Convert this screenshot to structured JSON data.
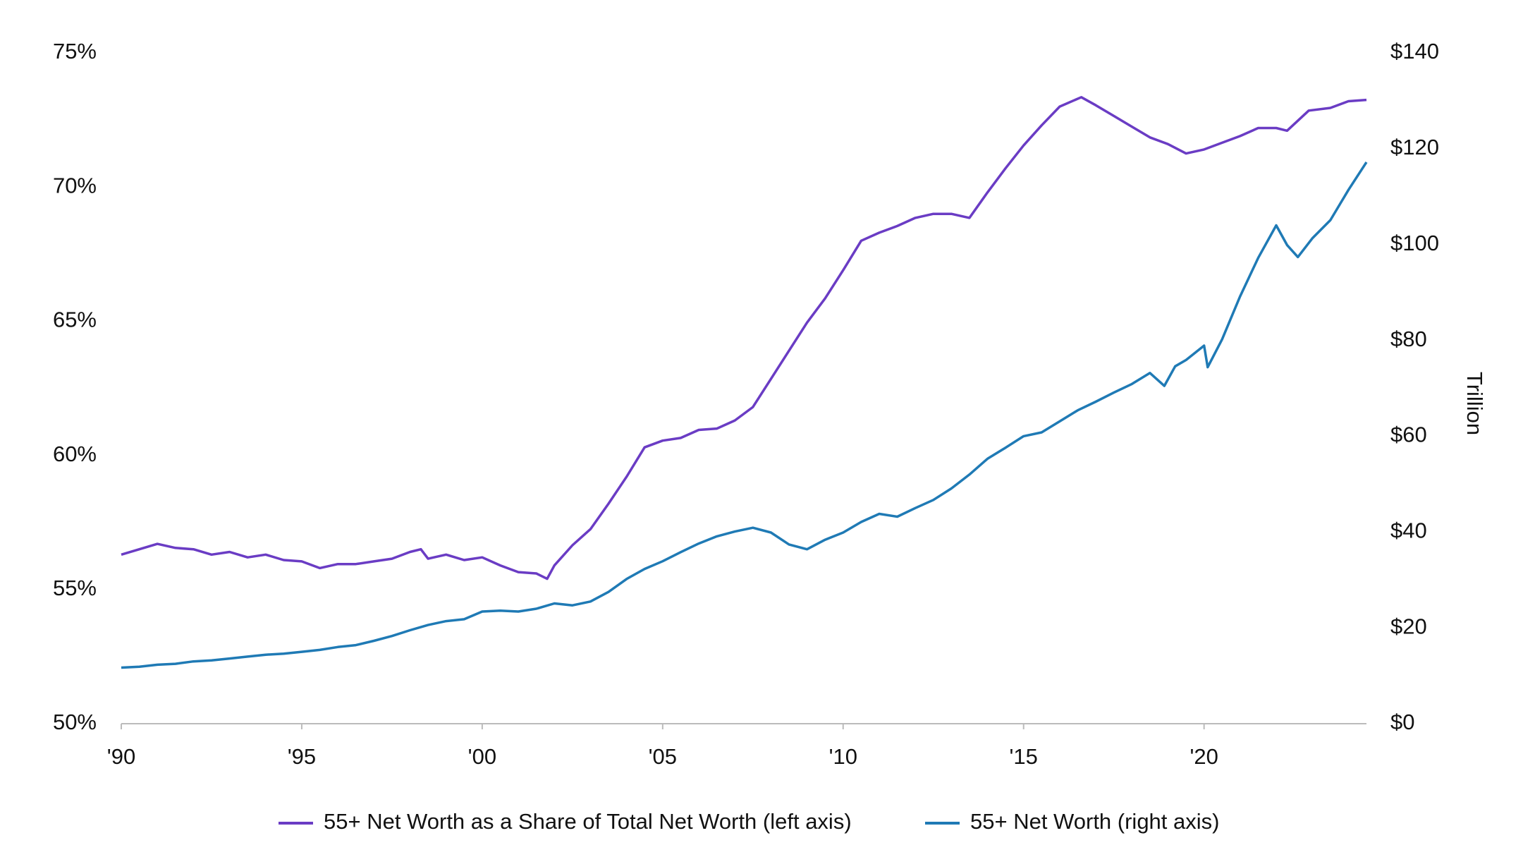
{
  "chart_data": {
    "type": "line",
    "y2label": "Trillion",
    "xlim": [
      1990,
      2024.5
    ],
    "xticks": [
      {
        "value": 1990,
        "label": "'90"
      },
      {
        "value": 1995,
        "label": "'95"
      },
      {
        "value": 2000,
        "label": "'00"
      },
      {
        "value": 2005,
        "label": "'05"
      },
      {
        "value": 2010,
        "label": "'10"
      },
      {
        "value": 2015,
        "label": "'15"
      },
      {
        "value": 2020,
        "label": "'20"
      }
    ],
    "ylim": [
      50,
      75
    ],
    "yticks": [
      {
        "value": 50,
        "label": "50%"
      },
      {
        "value": 55,
        "label": "55%"
      },
      {
        "value": 60,
        "label": "60%"
      },
      {
        "value": 65,
        "label": "65%"
      },
      {
        "value": 70,
        "label": "70%"
      },
      {
        "value": 75,
        "label": "75%"
      }
    ],
    "y2lim": [
      0,
      140
    ],
    "y2ticks": [
      {
        "value": 0,
        "label": "$0"
      },
      {
        "value": 20,
        "label": "$20"
      },
      {
        "value": 40,
        "label": "$40"
      },
      {
        "value": 60,
        "label": "$60"
      },
      {
        "value": 80,
        "label": "$80"
      },
      {
        "value": 100,
        "label": "$100"
      },
      {
        "value": 120,
        "label": "$120"
      },
      {
        "value": 140,
        "label": "$140"
      }
    ],
    "legend": "bottom",
    "series": [
      {
        "name": "55+ Net Worth as a Share of Total Net Worth (left axis)",
        "color": "#6a3cc4",
        "axis": "y",
        "x": [
          1990,
          1990.5,
          1991,
          1991.5,
          1992,
          1992.5,
          1993,
          1993.5,
          1994,
          1994.5,
          1995,
          1995.5,
          1996,
          1996.5,
          1997,
          1997.5,
          1998,
          1998.3,
          1998.5,
          1999,
          1999.5,
          2000,
          2000.5,
          2001,
          2001.5,
          2001.8,
          2002,
          2002.5,
          2003,
          2003.5,
          2004,
          2004.5,
          2005,
          2005.5,
          2006,
          2006.5,
          2007,
          2007.5,
          2008,
          2008.5,
          2009,
          2009.5,
          2010,
          2010.5,
          2011,
          2011.5,
          2012,
          2012.5,
          2013,
          2013.5,
          2014,
          2014.5,
          2015,
          2015.5,
          2016,
          2016.6,
          2017,
          2017.5,
          2018,
          2018.5,
          2019,
          2019.5,
          2020,
          2020.5,
          2021,
          2021.5,
          2022,
          2022.3,
          2022.9,
          2023.5,
          2024,
          2024.5
        ],
        "values": [
          56.3,
          56.5,
          56.7,
          56.55,
          56.5,
          56.3,
          56.4,
          56.2,
          56.3,
          56.1,
          56.05,
          55.8,
          55.95,
          55.95,
          56.05,
          56.15,
          56.4,
          56.5,
          56.15,
          56.3,
          56.1,
          56.2,
          55.9,
          55.65,
          55.6,
          55.4,
          55.9,
          56.65,
          57.25,
          58.2,
          59.2,
          60.3,
          60.55,
          60.65,
          60.95,
          61.0,
          61.3,
          61.8,
          62.85,
          63.9,
          64.95,
          65.85,
          66.9,
          68.0,
          68.3,
          68.55,
          68.85,
          69.0,
          69.0,
          68.85,
          69.8,
          70.7,
          71.55,
          72.3,
          73.0,
          73.35,
          73.05,
          72.65,
          72.25,
          71.85,
          71.6,
          71.25,
          71.4,
          71.65,
          71.9,
          72.2,
          72.2,
          72.1,
          72.85,
          72.95,
          73.2,
          73.25
        ]
      },
      {
        "name": "55+ Net Worth (right axis)",
        "color": "#1f7ab5",
        "axis": "y2",
        "x": [
          1990,
          1990.5,
          1991,
          1991.5,
          1992,
          1992.5,
          1993,
          1993.5,
          1994,
          1994.5,
          1995,
          1995.5,
          1996,
          1996.5,
          1997,
          1997.5,
          1998,
          1998.5,
          1999,
          1999.5,
          2000,
          2000.5,
          2001,
          2001.5,
          2002,
          2002.5,
          2003,
          2003.5,
          2004,
          2004.5,
          2005,
          2005.5,
          2006,
          2006.5,
          2007,
          2007.5,
          2008,
          2008.5,
          2009,
          2009.5,
          2010,
          2010.5,
          2011,
          2011.5,
          2012,
          2012.5,
          2013,
          2013.5,
          2014,
          2014.5,
          2015,
          2015.5,
          2016,
          2016.5,
          2017,
          2017.5,
          2018,
          2018.5,
          2018.9,
          2019.2,
          2019.5,
          2020,
          2020.1,
          2020.5,
          2021,
          2021.5,
          2022,
          2022.3,
          2022.6,
          2023,
          2023.5,
          2024,
          2024.5
        ],
        "values": [
          11.7,
          11.9,
          12.3,
          12.5,
          13.0,
          13.2,
          13.6,
          14.0,
          14.4,
          14.6,
          15.0,
          15.4,
          16.0,
          16.4,
          17.3,
          18.3,
          19.5,
          20.6,
          21.4,
          21.8,
          23.4,
          23.6,
          23.4,
          24.0,
          25.1,
          24.7,
          25.5,
          27.5,
          30.2,
          32.3,
          33.9,
          35.8,
          37.6,
          39.1,
          40.1,
          40.9,
          39.9,
          37.4,
          36.4,
          38.4,
          39.9,
          42.1,
          43.8,
          43.2,
          45.0,
          46.7,
          49.1,
          52.0,
          55.3,
          57.6,
          60.0,
          60.8,
          63.1,
          65.4,
          67.2,
          69.1,
          70.9,
          73.2,
          70.5,
          74.6,
          75.9,
          78.9,
          74.4,
          80.2,
          89.2,
          97.2,
          104.0,
          99.9,
          97.4,
          101.3,
          105.1,
          111.4,
          117.2
        ]
      }
    ]
  }
}
